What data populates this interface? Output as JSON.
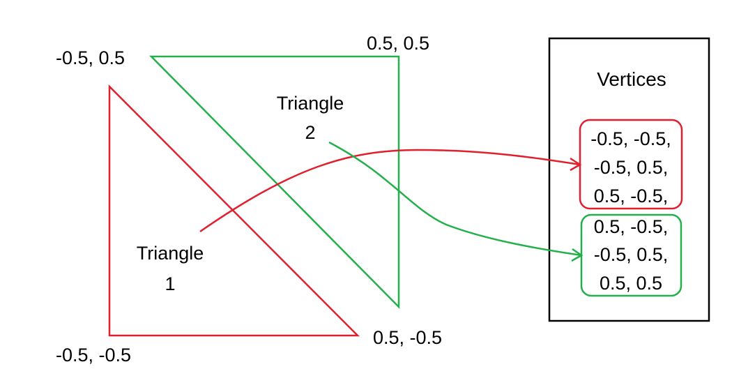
{
  "colors": {
    "triangle1": "#e0202e",
    "triangle2": "#22b04a",
    "box": "#000000",
    "text": "#000000",
    "background": "#ffffff"
  },
  "coords": {
    "top_left": "-0.5, 0.5",
    "top_right": "0.5, 0.5",
    "bottom_left": "-0.5, -0.5",
    "bottom_right": "0.5, -0.5"
  },
  "triangle1": {
    "label_line1": "Triangle",
    "label_line2": "1"
  },
  "triangle2": {
    "label_line1": "Triangle",
    "label_line2": "2"
  },
  "vertices_panel": {
    "title": "Vertices",
    "group1": [
      "-0.5, -0.5,",
      "-0.5, 0.5,",
      "0.5, -0.5,"
    ],
    "group2": [
      "0.5, -0.5,",
      "-0.5, 0.5,",
      "0.5, 0.5"
    ]
  }
}
